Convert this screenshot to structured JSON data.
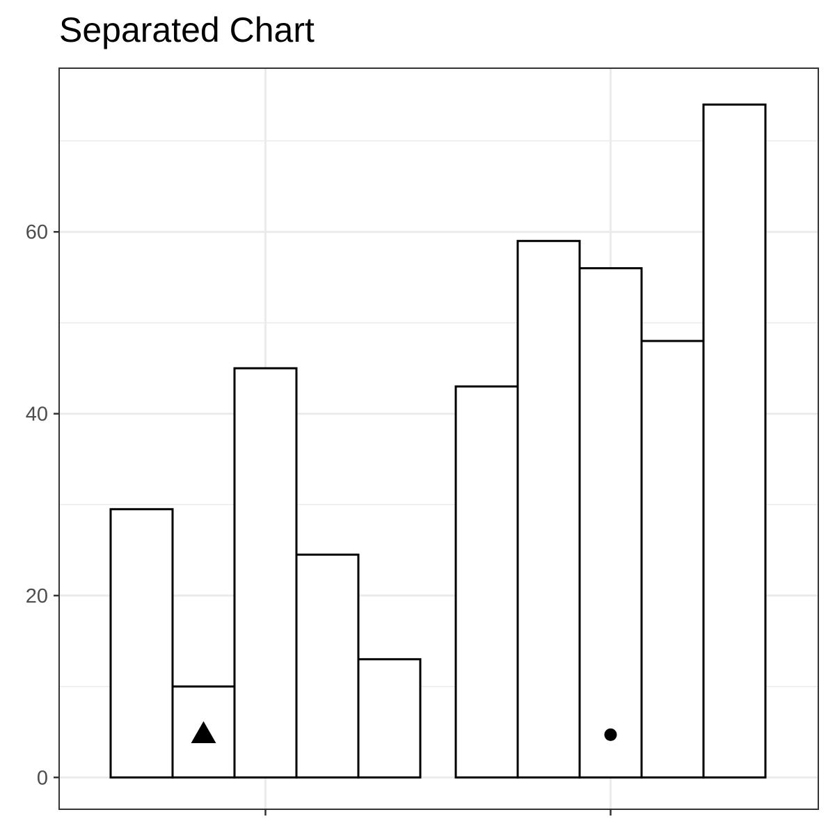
{
  "chart_data": {
    "type": "bar",
    "title": "Separated Chart",
    "xlabel": "",
    "ylabel": "",
    "ylim": [
      -3.5,
      78
    ],
    "y_ticks": [
      0,
      20,
      40,
      60
    ],
    "y_tick_labels": [
      "0",
      "20",
      "40",
      "60"
    ],
    "grid": true,
    "groups": [
      {
        "values": [
          29.5,
          10,
          45,
          24.5,
          13
        ],
        "marker": {
          "shape": "triangle",
          "bar_index": 1,
          "y": 4.8
        }
      },
      {
        "values": [
          43,
          59,
          56,
          48,
          74
        ],
        "marker": {
          "shape": "circle",
          "bar_index": 2,
          "y": 4.7
        }
      }
    ],
    "colors": {
      "bar_fill": "#ffffff",
      "bar_stroke": "#000000",
      "grid": "#ebebeb",
      "panel_border": "#333333",
      "marker": "#000000"
    }
  }
}
